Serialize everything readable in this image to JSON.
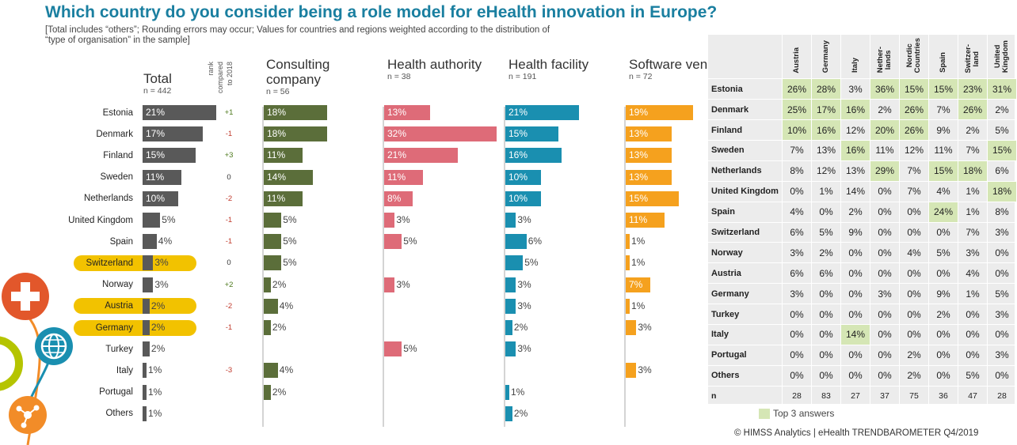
{
  "title": "Which country do you consider being a role model for eHealth innovation in Europe?",
  "note_line1": "[Total includes “others”; Rounding errors may occur; Values for countries and regions weighted according to the  distribution of",
  "note_line2": "“type of organisation” in the sample]",
  "rank_header": [
    "rank",
    "compared",
    "to 2018"
  ],
  "highlighted_countries": [
    "Switzerland",
    "Austria",
    "Germany"
  ],
  "colors": {
    "Total": "#595959",
    "Consulting company": "#5b6e3a",
    "Health authority": "#de6b78",
    "Health facility": "#1a8fb0",
    "Software vendor": "#f5a11e",
    "highlight": "#f2c200",
    "top3": "#d5e6b5",
    "rank_up": "#4e7a1e",
    "rank_down": "#c0392b"
  },
  "chart_data": {
    "type": "bar",
    "orientation": "horizontal",
    "categories": [
      "Estonia",
      "Denmark",
      "Finland",
      "Sweden",
      "Netherlands",
      "United Kingdom",
      "Spain",
      "Switzerland",
      "Norway",
      "Austria",
      "Germany",
      "Turkey",
      "Italy",
      "Portugal",
      "Others"
    ],
    "series": [
      {
        "name": "Total",
        "n": "n = 442",
        "values": [
          21,
          17,
          15,
          11,
          10,
          5,
          4,
          3,
          3,
          2,
          2,
          2,
          1,
          1,
          1
        ]
      },
      {
        "name": "Consulting company",
        "n": "n = 56",
        "values": [
          18,
          18,
          11,
          14,
          11,
          5,
          5,
          5,
          2,
          4,
          2,
          null,
          4,
          2,
          null
        ]
      },
      {
        "name": "Health authority",
        "n": "n = 38",
        "values": [
          13,
          32,
          21,
          11,
          8,
          3,
          5,
          null,
          3,
          null,
          null,
          5,
          null,
          null,
          null
        ]
      },
      {
        "name": "Health facility",
        "n": "n = 191",
        "values": [
          21,
          15,
          16,
          10,
          10,
          3,
          6,
          5,
          3,
          3,
          2,
          3,
          null,
          1,
          2
        ]
      },
      {
        "name": "Software vendor",
        "n": "n = 72",
        "values": [
          19,
          13,
          13,
          13,
          15,
          11,
          1,
          1,
          7,
          1,
          3,
          null,
          3,
          null,
          null
        ]
      }
    ],
    "rank_change": [
      "+1",
      "-1",
      "+3",
      "0",
      "-2",
      "-1",
      "-1",
      "0",
      "+2",
      "-2",
      "-1",
      "",
      "-3",
      "",
      ""
    ],
    "unit": "%"
  },
  "matrix": {
    "columns": [
      "Austria",
      "Germany",
      "Italy",
      "Nether-|lands",
      "Nordic|Countries",
      "Spain",
      "Switzer-|land",
      "United|Kingdom"
    ],
    "rows": [
      {
        "label": "Estonia",
        "values": [
          "26%",
          "28%",
          "3%",
          "36%",
          "15%",
          "15%",
          "23%",
          "31%"
        ],
        "top": [
          1,
          1,
          0,
          1,
          1,
          1,
          1,
          1
        ]
      },
      {
        "label": "Denmark",
        "values": [
          "25%",
          "17%",
          "16%",
          "2%",
          "26%",
          "7%",
          "26%",
          "2%"
        ],
        "top": [
          1,
          1,
          1,
          0,
          1,
          0,
          1,
          0
        ]
      },
      {
        "label": "Finland",
        "values": [
          "10%",
          "16%",
          "12%",
          "20%",
          "26%",
          "9%",
          "2%",
          "5%"
        ],
        "top": [
          1,
          1,
          0,
          1,
          1,
          0,
          0,
          0
        ]
      },
      {
        "label": "Sweden",
        "values": [
          "7%",
          "13%",
          "16%",
          "11%",
          "12%",
          "11%",
          "7%",
          "15%"
        ],
        "top": [
          0,
          0,
          1,
          0,
          0,
          0,
          0,
          1
        ]
      },
      {
        "label": "Netherlands",
        "values": [
          "8%",
          "12%",
          "13%",
          "29%",
          "7%",
          "15%",
          "18%",
          "6%"
        ],
        "top": [
          0,
          0,
          0,
          1,
          0,
          1,
          1,
          0
        ]
      },
      {
        "label": "United Kingdom",
        "values": [
          "0%",
          "1%",
          "14%",
          "0%",
          "7%",
          "4%",
          "1%",
          "18%"
        ],
        "top": [
          0,
          0,
          0,
          0,
          0,
          0,
          0,
          1
        ]
      },
      {
        "label": "Spain",
        "values": [
          "4%",
          "0%",
          "2%",
          "0%",
          "0%",
          "24%",
          "1%",
          "8%"
        ],
        "top": [
          0,
          0,
          0,
          0,
          0,
          1,
          0,
          0
        ]
      },
      {
        "label": "Switzerland",
        "values": [
          "6%",
          "5%",
          "9%",
          "0%",
          "0%",
          "0%",
          "7%",
          "3%"
        ],
        "top": [
          0,
          0,
          0,
          0,
          0,
          0,
          0,
          0
        ]
      },
      {
        "label": "Norway",
        "values": [
          "3%",
          "2%",
          "0%",
          "0%",
          "4%",
          "5%",
          "3%",
          "0%"
        ],
        "top": [
          0,
          0,
          0,
          0,
          0,
          0,
          0,
          0
        ]
      },
      {
        "label": "Austria",
        "values": [
          "6%",
          "6%",
          "0%",
          "0%",
          "0%",
          "0%",
          "4%",
          "0%"
        ],
        "top": [
          0,
          0,
          0,
          0,
          0,
          0,
          0,
          0
        ]
      },
      {
        "label": "Germany",
        "values": [
          "3%",
          "0%",
          "0%",
          "3%",
          "0%",
          "9%",
          "1%",
          "5%"
        ],
        "top": [
          0,
          0,
          0,
          0,
          0,
          0,
          0,
          0
        ]
      },
      {
        "label": "Turkey",
        "values": [
          "0%",
          "0%",
          "0%",
          "0%",
          "0%",
          "2%",
          "0%",
          "3%"
        ],
        "top": [
          0,
          0,
          0,
          0,
          0,
          0,
          0,
          0
        ]
      },
      {
        "label": "Italy",
        "values": [
          "0%",
          "0%",
          "14%",
          "0%",
          "0%",
          "0%",
          "0%",
          "0%"
        ],
        "top": [
          0,
          0,
          1,
          0,
          0,
          0,
          0,
          0
        ]
      },
      {
        "label": "Portugal",
        "values": [
          "0%",
          "0%",
          "0%",
          "0%",
          "2%",
          "0%",
          "0%",
          "3%"
        ],
        "top": [
          0,
          0,
          0,
          0,
          0,
          0,
          0,
          0
        ]
      },
      {
        "label": "Others",
        "values": [
          "0%",
          "0%",
          "0%",
          "0%",
          "2%",
          "0%",
          "5%",
          "0%"
        ],
        "top": [
          0,
          0,
          0,
          0,
          0,
          0,
          0,
          0
        ]
      }
    ],
    "n_label": "n",
    "n_values": [
      "28",
      "83",
      "27",
      "37",
      "75",
      "36",
      "47",
      "28"
    ]
  },
  "legend_label": "Top 3 answers",
  "copyright": "© HIMSS Analytics | eHealth TRENDBAROMETER Q4/2019",
  "decorative_icons": [
    "plus-icon",
    "globe-icon",
    "network-icon"
  ]
}
